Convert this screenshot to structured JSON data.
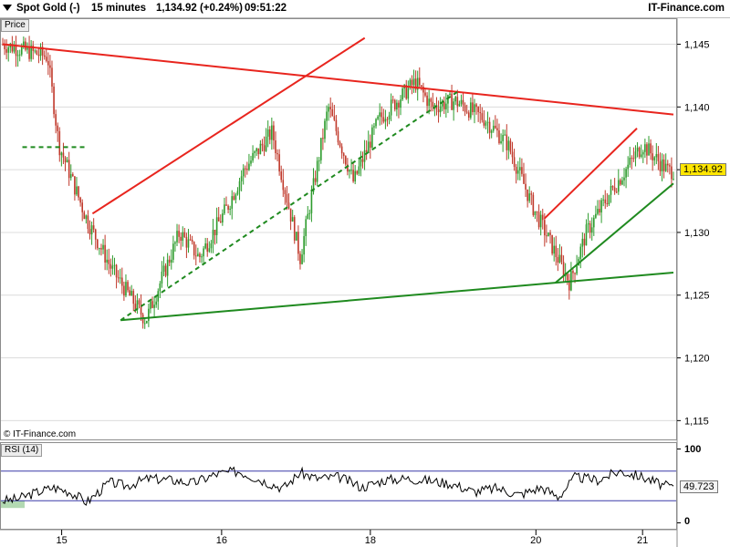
{
  "header": {
    "instrument": "Spot Gold (-)",
    "timeframe": "15 minutes",
    "last_change": "1,134.92 (+0.24%)",
    "time": "09:51:22",
    "brand": "IT-Finance.com"
  },
  "price_panel": {
    "label": "Price",
    "last_value_label": "1,134.92",
    "copyright": "© IT-Finance.com"
  },
  "rsi_panel": {
    "label": "RSI (14)",
    "value_label": "49.723",
    "tick_100": "100",
    "tick_0": "0"
  },
  "colors": {
    "up": "#2e9c2e",
    "down": "#c0392b",
    "resistance": "#e8251e",
    "support": "#1f8a1f",
    "rsi_line": "#000000",
    "rsi_bands": "#3a3aa8"
  },
  "chart_data": [
    {
      "type": "line",
      "title": "Spot Gold (-) 15 minutes",
      "x_ticks": [
        "15",
        "16",
        "18",
        "20",
        "21"
      ],
      "ylim": [
        1113.5,
        1147
      ],
      "y_ticks": [
        "1,115",
        "1,120",
        "1,125",
        "1,130",
        "1,135",
        "1,140",
        "1,145"
      ],
      "y_tick_values": [
        1115,
        1120,
        1125,
        1130,
        1135,
        1140,
        1145
      ],
      "grid": true,
      "series": [
        {
          "x": [
            0.0,
            0.8,
            1.0,
            1.5,
            1.95,
            2.55,
            3.15,
            3.5,
            4.0,
            4.3,
            4.8,
            5.3,
            5.8,
            6.25,
            6.7,
            7.35,
            7.65,
            8.05,
            8.6,
            9.0,
            9.45,
            10.1,
            10.4,
            10.8,
            11.4,
            11.85
          ],
          "values": [
            1145,
            1144,
            1137,
            1131,
            1127,
            1123,
            1130,
            1128,
            1132,
            1135,
            1138,
            1128,
            1140,
            1134,
            1139,
            1142,
            1140,
            1140.5,
            1139,
            1137,
            1132,
            1126,
            1130,
            1133,
            1137,
            1134.92
          ]
        }
      ],
      "trendlines": [
        {
          "kind": "resistance",
          "style": "solid",
          "x": [
            0.0,
            11.95
          ],
          "y": [
            1145,
            1139.4
          ]
        },
        {
          "kind": "resistance",
          "style": "solid",
          "x": [
            1.6,
            6.45
          ],
          "y": [
            1131.5,
            1145.5
          ]
        },
        {
          "kind": "resistance",
          "style": "solid",
          "x": [
            9.65,
            11.3
          ],
          "y": [
            1131.1,
            1138.3
          ]
        },
        {
          "kind": "support",
          "style": "solid",
          "x": [
            2.1,
            11.95
          ],
          "y": [
            1123,
            1126.8
          ]
        },
        {
          "kind": "support",
          "style": "solid",
          "x": [
            9.85,
            11.95
          ],
          "y": [
            1126,
            1133.9
          ]
        },
        {
          "kind": "support",
          "style": "dashed",
          "x": [
            2.1,
            8.1
          ],
          "y": [
            1123,
            1141.2
          ]
        },
        {
          "kind": "support",
          "style": "dashed",
          "x": [
            0.35,
            1.5
          ],
          "y": [
            1136.8,
            1136.8
          ]
        }
      ]
    },
    {
      "type": "line",
      "title": "RSI (14)",
      "ylim": [
        -8,
        108
      ],
      "bands": [
        30,
        70
      ],
      "series": [
        {
          "x": [
            0.0,
            0.25,
            0.55,
            0.9,
            1.2,
            1.5,
            1.9,
            2.2,
            2.6,
            3.0,
            3.4,
            3.8,
            4.2,
            4.6,
            5.0,
            5.3,
            5.6,
            6.0,
            6.4,
            6.8,
            7.2,
            7.6,
            8.0,
            8.4,
            8.8,
            9.2,
            9.6,
            9.9,
            10.2,
            10.6,
            11.0,
            11.4,
            11.8
          ],
          "values": [
            30,
            32,
            40,
            48,
            42,
            28,
            55,
            50,
            60,
            58,
            54,
            66,
            70,
            58,
            47,
            68,
            60,
            62,
            48,
            58,
            60,
            57,
            53,
            42,
            47,
            38,
            48,
            35,
            62,
            58,
            70,
            62,
            49.723
          ]
        }
      ]
    }
  ]
}
